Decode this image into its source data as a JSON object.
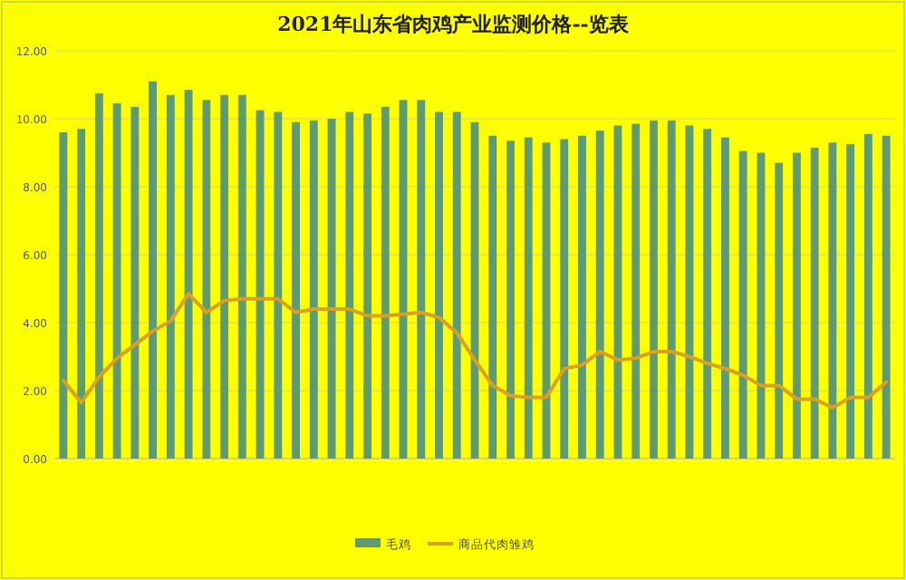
{
  "chart_data": {
    "type": "bar",
    "title": "2021年山东省肉鸡产业监测价格--览表",
    "categories": [
      null,
      null,
      null,
      null,
      null,
      null,
      null,
      null,
      null,
      null,
      null,
      null,
      null,
      null,
      null,
      null,
      null,
      null,
      null,
      null,
      null,
      null,
      null,
      null,
      null,
      null,
      null,
      null,
      null,
      null,
      null,
      null,
      null,
      null,
      null,
      null,
      null,
      null,
      null,
      null,
      null,
      null,
      null,
      null,
      null,
      null,
      null
    ],
    "series": [
      {
        "name": "毛鸡",
        "color": "#5f9a70",
        "values": [
          9.6,
          9.7,
          10.75,
          10.45,
          10.35,
          11.1,
          10.7,
          10.85,
          10.55,
          10.7,
          10.7,
          10.25,
          10.2,
          9.9,
          9.95,
          10.0,
          10.2,
          10.15,
          10.35,
          10.55,
          10.55,
          10.2,
          10.2,
          9.9,
          9.5,
          9.35,
          9.45,
          9.3,
          9.4,
          9.5,
          9.65,
          9.8,
          9.85,
          9.95,
          9.95,
          9.8,
          9.7,
          9.45,
          9.05,
          9.0,
          8.7,
          9.0,
          9.15,
          9.3,
          9.25,
          9.55,
          9.5
        ]
      },
      {
        "name": "商品代肉雏鸡",
        "type": "line",
        "color": "#d9a021",
        "values": [
          2.3,
          1.65,
          2.4,
          2.95,
          3.35,
          3.75,
          4.05,
          4.85,
          4.3,
          4.65,
          4.7,
          4.7,
          4.7,
          4.3,
          4.4,
          4.4,
          4.4,
          4.2,
          4.2,
          4.25,
          4.3,
          4.15,
          3.7,
          2.9,
          2.15,
          1.85,
          1.8,
          1.8,
          2.65,
          2.75,
          3.15,
          2.9,
          2.95,
          3.15,
          3.15,
          3.0,
          2.8,
          2.65,
          2.45,
          2.15,
          2.15,
          1.75,
          1.75,
          1.5,
          1.8,
          1.8,
          2.25
        ]
      }
    ],
    "ylim": [
      0,
      12
    ],
    "yticks": [
      {
        "value": 0,
        "label": "0.00"
      },
      {
        "value": 2,
        "label": "2.00"
      },
      {
        "value": 4,
        "label": "4.00"
      },
      {
        "value": 6,
        "label": "6.00"
      },
      {
        "value": 8,
        "label": "8.00"
      },
      {
        "value": 10,
        "label": "10.00"
      },
      {
        "value": 12,
        "label": "12.00"
      }
    ],
    "grid": "y",
    "legend": "bottom"
  }
}
